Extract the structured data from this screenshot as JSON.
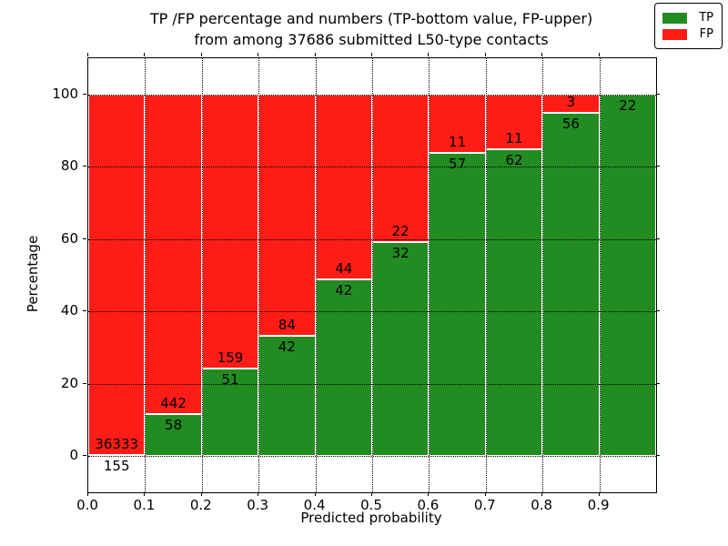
{
  "title": {
    "line1": "TP /FP percentage and numbers (TP-bottom value, FP-upper)",
    "line2": "from among 37686 submitted L50-type contacts"
  },
  "axes": {
    "xlabel": "Predicted probability",
    "ylabel": "Percentage",
    "xticks": [
      "0.0",
      "0.1",
      "0.2",
      "0.3",
      "0.4",
      "0.5",
      "0.6",
      "0.7",
      "0.8",
      "0.9"
    ],
    "yticks": [
      "0",
      "20",
      "40",
      "60",
      "80",
      "100"
    ]
  },
  "legend": {
    "items": [
      {
        "label": "TP",
        "color": "#228b22"
      },
      {
        "label": "FP",
        "color": "#fd1d16"
      }
    ]
  },
  "colors": {
    "tp": "#228b22",
    "fp": "#fd1d16",
    "grid": "#000000",
    "frame": "#000000"
  },
  "chart_data": {
    "type": "bar",
    "stacked": true,
    "title": "TP /FP percentage and numbers (TP-bottom value, FP-upper) from among 37686 submitted L50-type contacts",
    "xlabel": "Predicted probability",
    "ylabel": "Percentage",
    "xlim": [
      0.0,
      1.0
    ],
    "ylim": [
      -10,
      110
    ],
    "grid": true,
    "legend_position": "upper right",
    "total_submitted": 37686,
    "bin_edges": [
      0.0,
      0.1,
      0.2,
      0.3,
      0.4,
      0.5,
      0.6,
      0.7,
      0.8,
      0.9,
      1.0
    ],
    "series": [
      {
        "name": "TP",
        "counts": [
          155,
          58,
          51,
          42,
          42,
          32,
          57,
          62,
          56,
          22
        ]
      },
      {
        "name": "FP",
        "counts": [
          36333,
          442,
          159,
          84,
          44,
          22,
          11,
          11,
          3,
          0
        ]
      }
    ],
    "tp_percent": [
      0.42,
      11.6,
      24.29,
      33.33,
      48.84,
      59.26,
      83.82,
      84.93,
      94.92,
      100.0
    ],
    "fp_percent": [
      99.58,
      88.4,
      75.71,
      66.67,
      51.16,
      40.74,
      16.18,
      15.07,
      5.08,
      0.0
    ],
    "bar_labels": [
      {
        "fp": "36333",
        "tp": "155"
      },
      {
        "fp": "442",
        "tp": "58"
      },
      {
        "fp": "159",
        "tp": "51"
      },
      {
        "fp": "84",
        "tp": "42"
      },
      {
        "fp": "44",
        "tp": "42"
      },
      {
        "fp": "22",
        "tp": "32"
      },
      {
        "fp": "11",
        "tp": "57"
      },
      {
        "fp": "11",
        "tp": "62"
      },
      {
        "fp": "3",
        "tp": "56"
      },
      {
        "fp": "",
        "tp": "22"
      }
    ]
  }
}
